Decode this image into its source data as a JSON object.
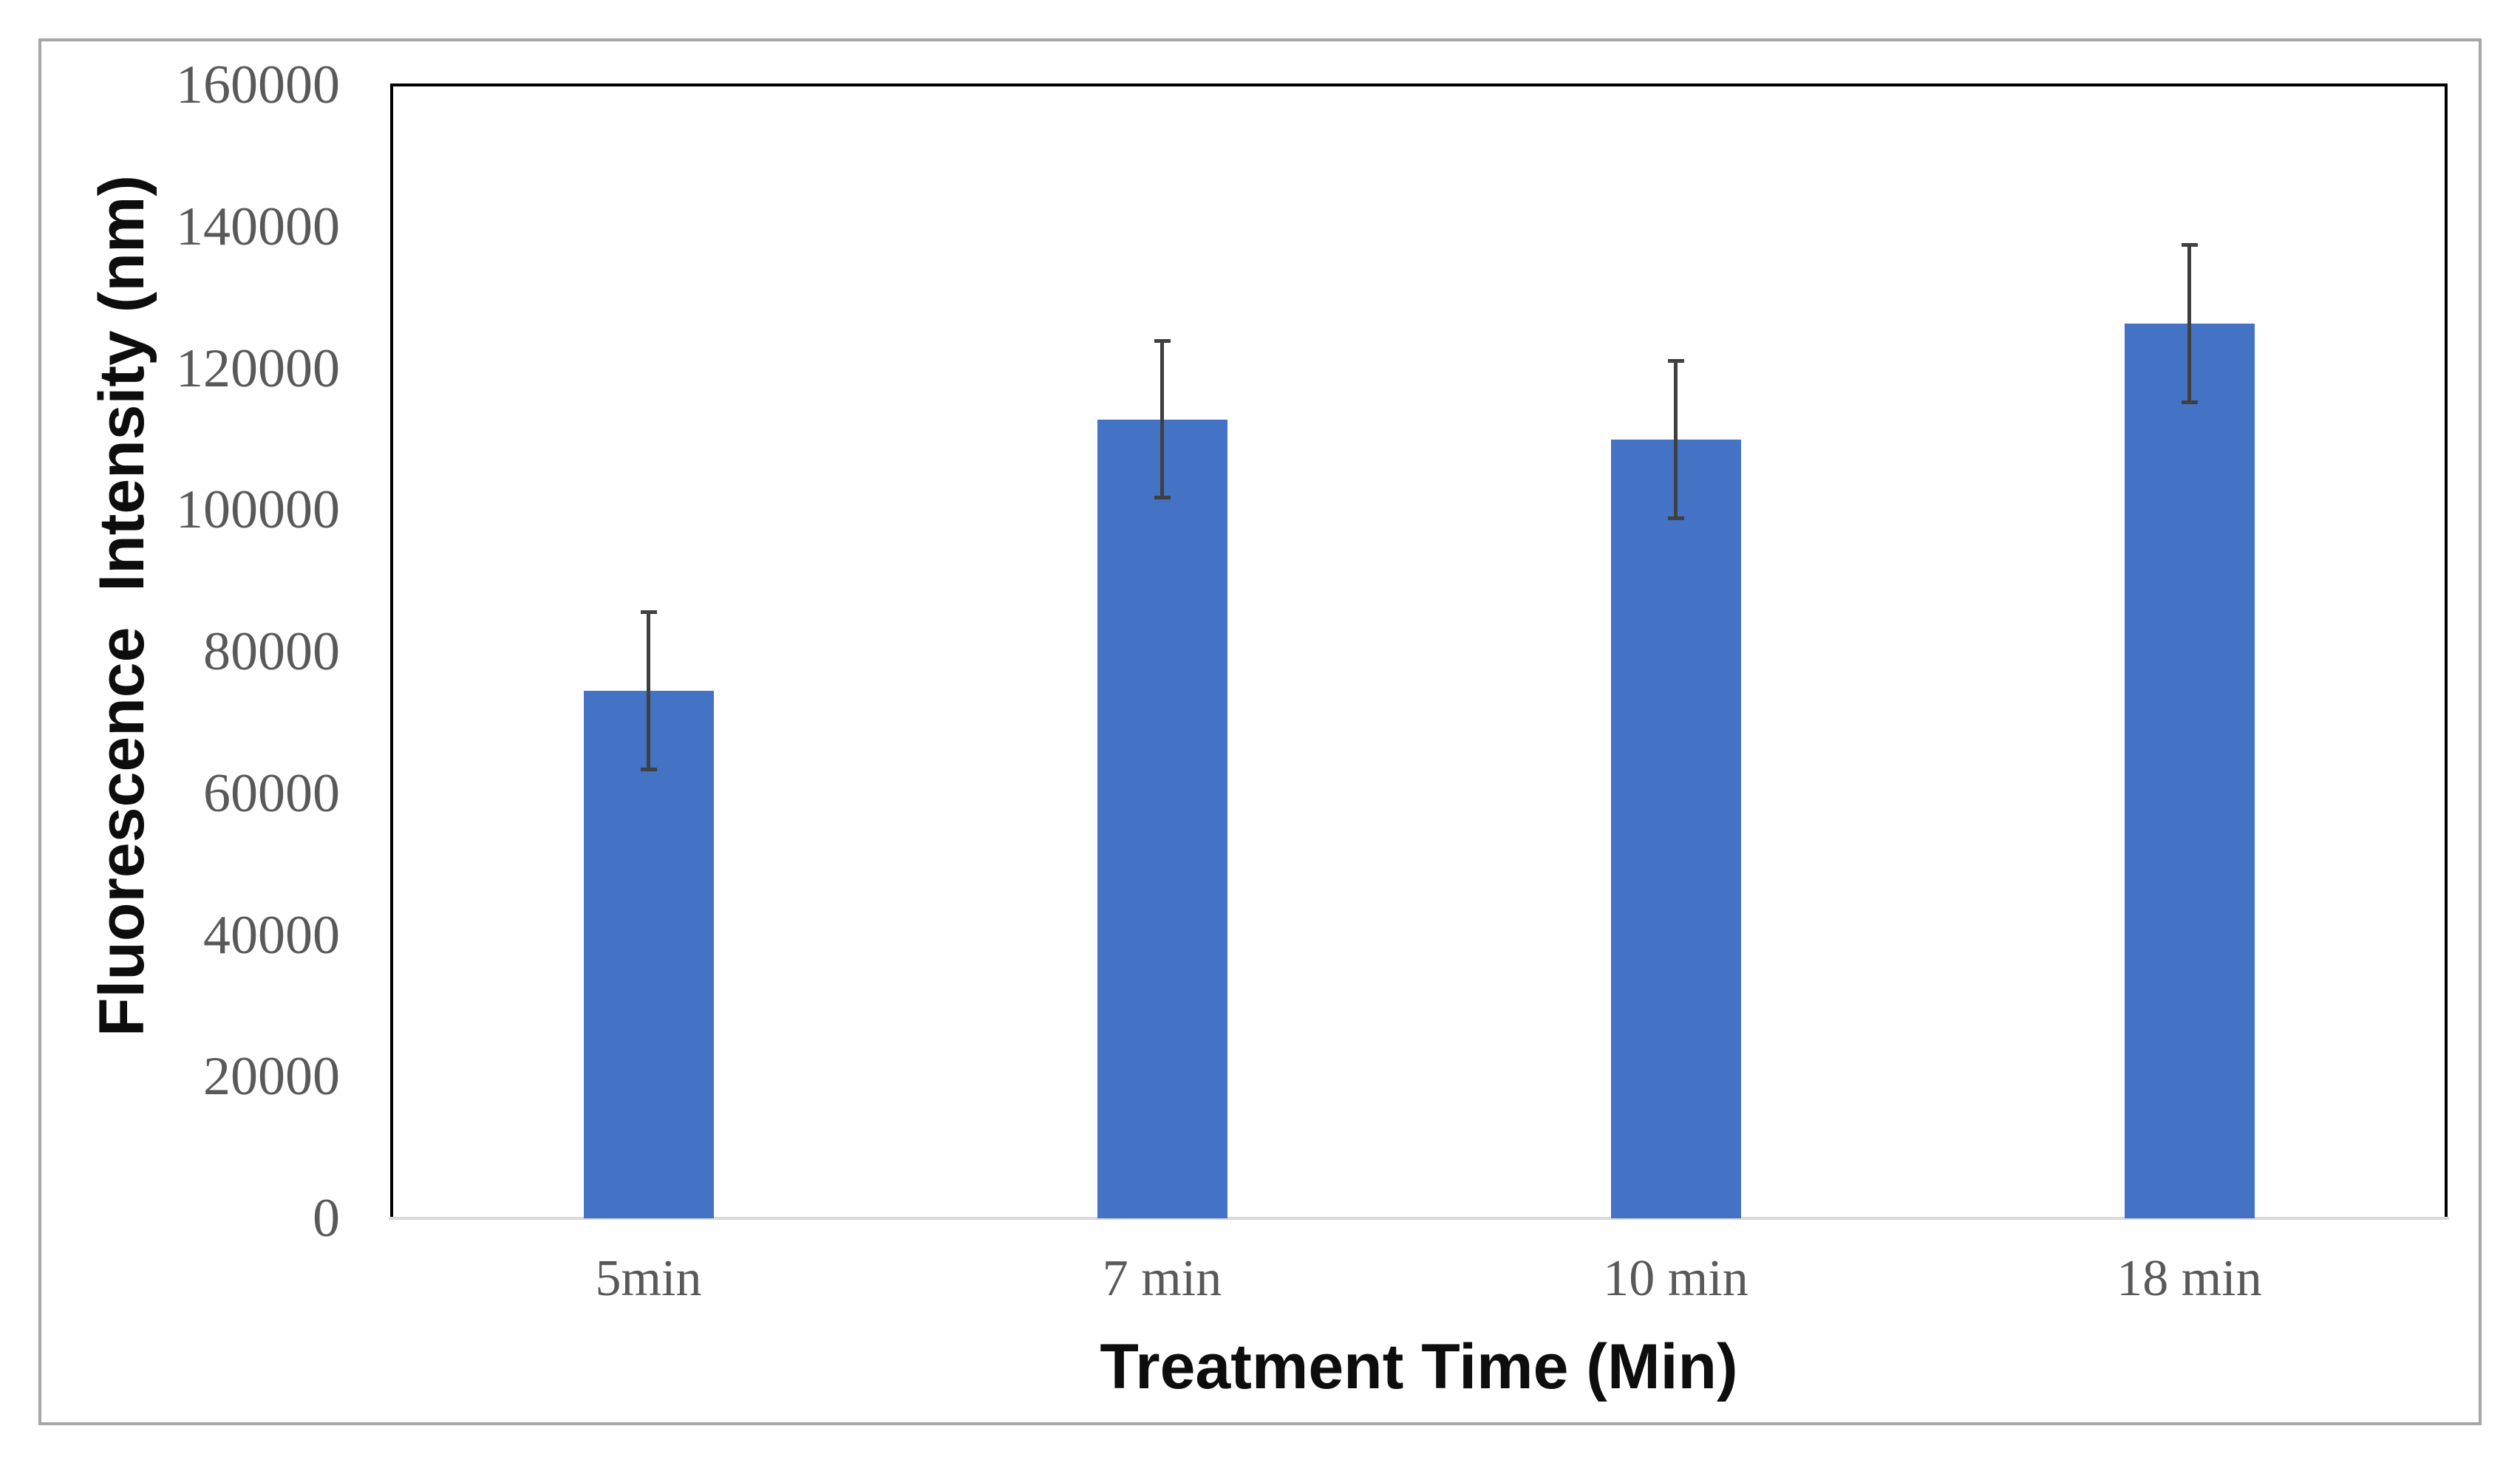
{
  "chart_data": {
    "type": "bar",
    "title": "",
    "categories": [
      "5min",
      "7 min",
      "10 min",
      "18 min"
    ],
    "values": [
      74500,
      112800,
      109900,
      126300
    ],
    "errors": [
      11100,
      11100,
      11100,
      11100
    ],
    "xlabel": "Treatment Time (Min)",
    "ylabel": "Fluorescence  Intensity (nm)",
    "ylim": [
      0,
      160000
    ],
    "y_ticks": [
      0,
      20000,
      40000,
      60000,
      80000,
      100000,
      120000,
      140000,
      160000
    ],
    "grid": false,
    "legend": false,
    "error_bar_style": "plus-minus-with-caps",
    "colors": {
      "bar_fill": "#4472C4",
      "error_bar": "#404040",
      "tick_label": "#595959",
      "axis_title": "#0d0d0d",
      "plot_border": "#000000",
      "baseline": "#d9d9d9",
      "outer_frame": "#a6a6a6"
    }
  }
}
